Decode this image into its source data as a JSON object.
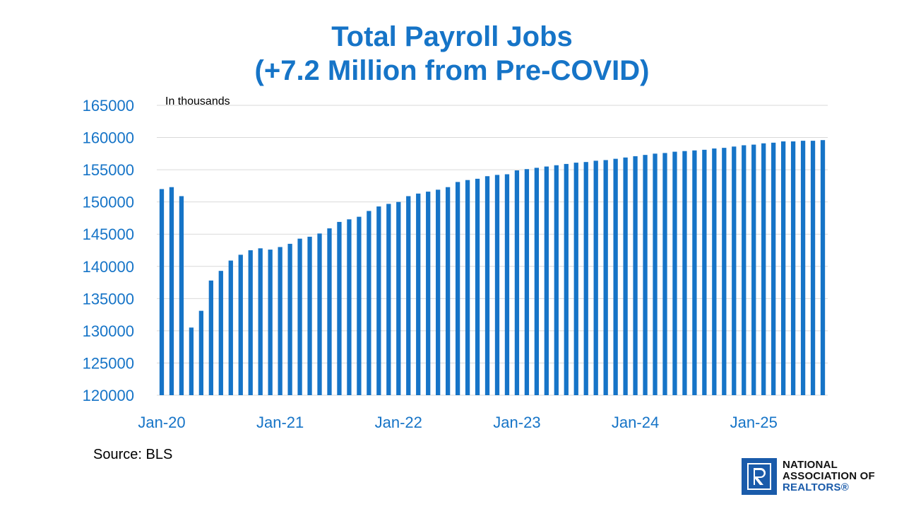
{
  "title_line1": "Total Payroll Jobs",
  "title_line2": "(+7.2 Million from Pre-COVID)",
  "source": "Source: BLS",
  "logo": {
    "line1": "NATIONAL",
    "line2": "ASSOCIATION OF",
    "line3": "REALTORS®",
    "icon": "realtor-r-logo-icon"
  },
  "colors": {
    "title": "#1674C7",
    "bar": "#1674C7",
    "axis_text": "#1674C7",
    "grid": "#D9D9D9",
    "logo": "#1A5BAA"
  },
  "chart_data": {
    "type": "bar",
    "annotation": "In thousands",
    "ylim": [
      120000,
      165000
    ],
    "y_ticks": [
      "120000",
      "125000",
      "130000",
      "135000",
      "140000",
      "145000",
      "150000",
      "155000",
      "160000",
      "165000"
    ],
    "x_tick_labels": [
      "Jan-20",
      "Jan-21",
      "Jan-22",
      "Jan-23",
      "Jan-24",
      "Jan-25"
    ],
    "grid": true,
    "legend": "none",
    "categories": [
      "Jan-20",
      "Feb-20",
      "Mar-20",
      "Apr-20",
      "May-20",
      "Jun-20",
      "Jul-20",
      "Aug-20",
      "Sep-20",
      "Oct-20",
      "Nov-20",
      "Dec-20",
      "Jan-21",
      "Feb-21",
      "Mar-21",
      "Apr-21",
      "May-21",
      "Jun-21",
      "Jul-21",
      "Aug-21",
      "Sep-21",
      "Oct-21",
      "Nov-21",
      "Dec-21",
      "Jan-22",
      "Feb-22",
      "Mar-22",
      "Apr-22",
      "May-22",
      "Jun-22",
      "Jul-22",
      "Aug-22",
      "Sep-22",
      "Oct-22",
      "Nov-22",
      "Dec-22",
      "Jan-23",
      "Feb-23",
      "Mar-23",
      "Apr-23",
      "May-23",
      "Jun-23",
      "Jul-23",
      "Aug-23",
      "Sep-23",
      "Oct-23",
      "Nov-23",
      "Dec-23",
      "Jan-24",
      "Feb-24",
      "Mar-24",
      "Apr-24",
      "May-24",
      "Jun-24",
      "Jul-24",
      "Aug-24",
      "Sep-24",
      "Oct-24",
      "Nov-24",
      "Dec-24",
      "Jan-25",
      "Feb-25",
      "Mar-25",
      "Apr-25",
      "May-25",
      "Jun-25",
      "Jul-25",
      "Aug-25"
    ],
    "values": [
      152000,
      152300,
      150900,
      130500,
      133100,
      137800,
      139300,
      140900,
      141800,
      142500,
      142800,
      142600,
      143000,
      143500,
      144300,
      144600,
      145100,
      145900,
      146900,
      147300,
      147700,
      148600,
      149300,
      149700,
      150000,
      150900,
      151300,
      151600,
      151900,
      152300,
      153100,
      153400,
      153600,
      154000,
      154200,
      154300,
      154900,
      155100,
      155300,
      155500,
      155700,
      155900,
      156100,
      156200,
      156400,
      156500,
      156700,
      156900,
      157100,
      157300,
      157500,
      157600,
      157800,
      157900,
      158000,
      158100,
      158300,
      158400,
      158600,
      158800,
      158900,
      159100,
      159200,
      159400,
      159400,
      159500,
      159500,
      159600
    ]
  }
}
